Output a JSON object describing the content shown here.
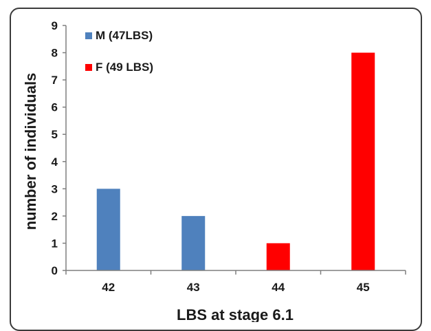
{
  "chart_data": {
    "type": "bar",
    "categories": [
      "42",
      "43",
      "44",
      "45"
    ],
    "series": [
      {
        "name": "M (47LBS)",
        "color": "#4f81bd",
        "values": [
          3,
          2,
          0,
          0
        ]
      },
      {
        "name": "F (49 LBS)",
        "color": "#ff0000",
        "values": [
          0,
          0,
          1,
          8
        ]
      }
    ],
    "ylabel": "number of individuals",
    "xlabel": "LBS at stage 6.1",
    "ylim": [
      0,
      9
    ],
    "yticks": [
      0,
      1,
      2,
      3,
      4,
      5,
      6,
      7,
      8,
      9
    ],
    "grid": false,
    "legend_position": "top-left"
  }
}
